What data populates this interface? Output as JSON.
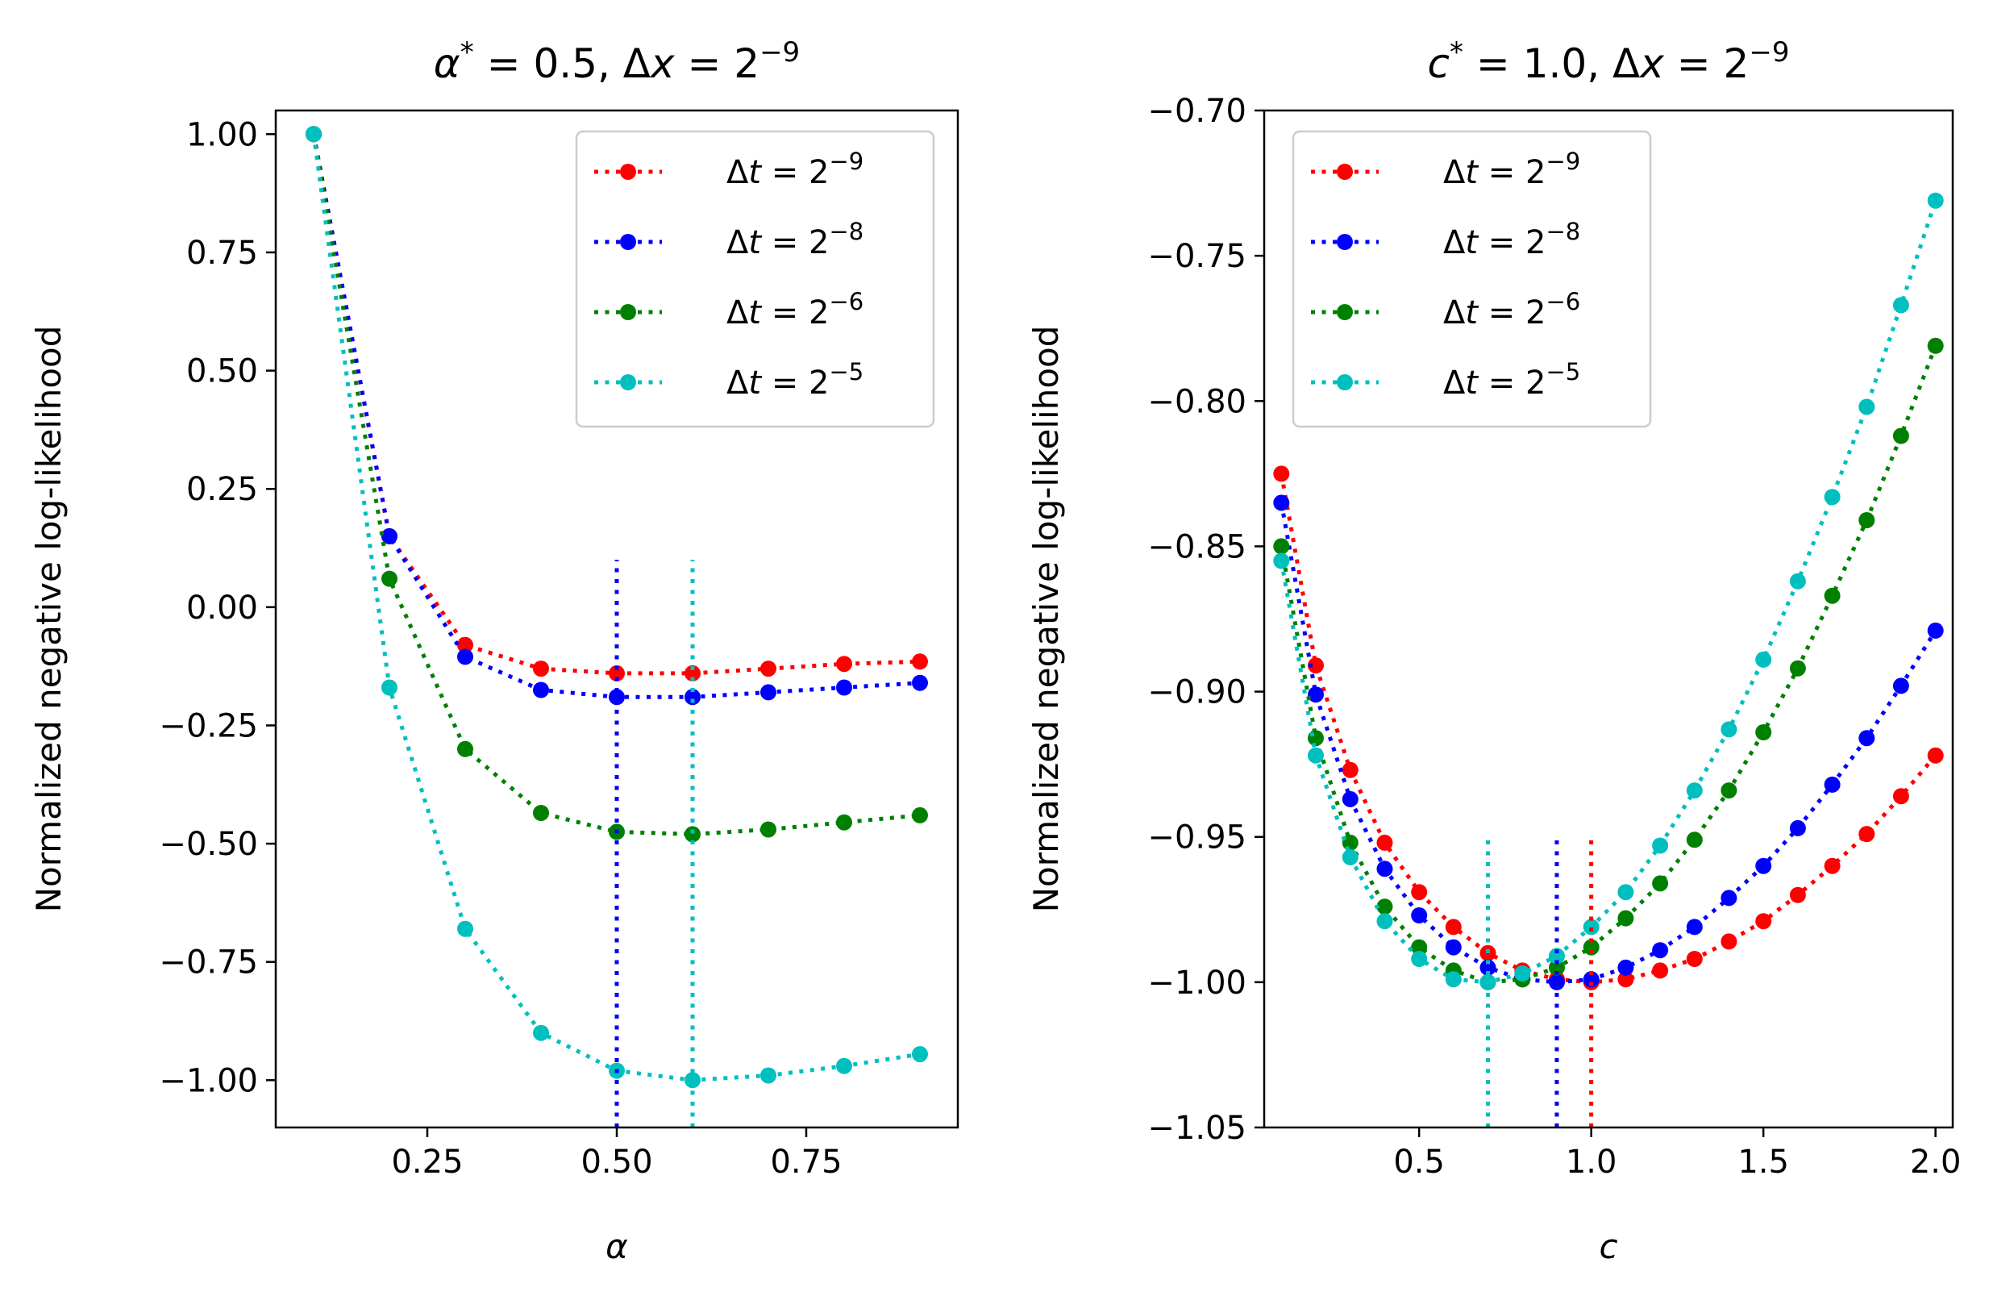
{
  "chart_data": [
    {
      "type": "line",
      "title_parts": [
        "α",
        "*",
        " = 0.5, Δ",
        "x",
        " = 2",
        "−9"
      ],
      "xlabel": "α",
      "ylabel": "Normalized negative log-likelihood",
      "xlim": [
        0.05,
        0.95
      ],
      "ylim": [
        -1.1,
        1.05
      ],
      "xticks": [
        0.25,
        0.5,
        0.75
      ],
      "xtick_labels": [
        "0.25",
        "0.50",
        "0.75"
      ],
      "yticks": [
        1.0,
        0.75,
        0.5,
        0.25,
        0.0,
        -0.25,
        -0.5,
        -0.75,
        -1.0
      ],
      "ytick_labels": [
        "1.00",
        "0.75",
        "0.50",
        "0.25",
        "0.00",
        "−0.25",
        "−0.50",
        "−0.75",
        "−1.00"
      ],
      "legend_position": "upper right",
      "grid": false,
      "x": [
        0.1,
        0.2,
        0.3,
        0.4,
        0.5,
        0.6,
        0.7,
        0.8,
        0.9
      ],
      "series": [
        {
          "name": "Δt = 2^−9",
          "legend_parts": [
            "Δ",
            "t",
            " = 2",
            "−9"
          ],
          "color": "#ff0000",
          "values": [
            1.0,
            0.15,
            -0.08,
            -0.13,
            -0.14,
            -0.14,
            -0.13,
            -0.12,
            -0.115
          ]
        },
        {
          "name": "Δt = 2^−8",
          "legend_parts": [
            "Δ",
            "t",
            " = 2",
            "−8"
          ],
          "color": "#0000ff",
          "values": [
            1.0,
            0.15,
            -0.105,
            -0.175,
            -0.19,
            -0.19,
            -0.18,
            -0.17,
            -0.16
          ]
        },
        {
          "name": "Δt = 2^−6",
          "legend_parts": [
            "Δ",
            "t",
            " = 2",
            "−6"
          ],
          "color": "#008000",
          "values": [
            1.0,
            0.06,
            -0.3,
            -0.435,
            -0.475,
            -0.48,
            -0.47,
            -0.455,
            -0.44
          ]
        },
        {
          "name": "Δt = 2^−5",
          "legend_parts": [
            "Δ",
            "t",
            " = 2",
            "−5"
          ],
          "color": "#00bfbf",
          "values": [
            1.0,
            -0.17,
            -0.68,
            -0.9,
            -0.98,
            -1.0,
            -0.99,
            -0.97,
            -0.945
          ]
        }
      ],
      "vlines": [
        {
          "x": 0.5,
          "y_range": [
            -1.1,
            0.1
          ],
          "color": "#0000ff"
        },
        {
          "x": 0.6,
          "y_range": [
            -1.1,
            0.1
          ],
          "color": "#00bfbf"
        }
      ]
    },
    {
      "type": "line",
      "title_parts": [
        "c",
        "*",
        " = 1.0, Δ",
        "x",
        " = 2",
        "−9"
      ],
      "xlabel": "c",
      "ylabel": "Normalized negative log-likelihood",
      "xlim": [
        0.05,
        2.05
      ],
      "ylim": [
        -1.05,
        -0.7
      ],
      "xticks": [
        0.5,
        1.0,
        1.5,
        2.0
      ],
      "xtick_labels": [
        "0.5",
        "1.0",
        "1.5",
        "2.0"
      ],
      "yticks": [
        -0.7,
        -0.75,
        -0.8,
        -0.85,
        -0.9,
        -0.95,
        -1.0,
        -1.05
      ],
      "ytick_labels": [
        "−0.70",
        "−0.75",
        "−0.80",
        "−0.85",
        "−0.90",
        "−0.95",
        "−1.00",
        "−1.05"
      ],
      "legend_position": "upper left",
      "grid": false,
      "x": [
        0.1,
        0.2,
        0.3,
        0.4,
        0.5,
        0.6,
        0.7,
        0.8,
        0.9,
        1.0,
        1.1,
        1.2,
        1.3,
        1.4,
        1.5,
        1.6,
        1.7,
        1.8,
        1.9,
        2.0
      ],
      "series": [
        {
          "name": "Δt = 2^−9",
          "legend_parts": [
            "Δ",
            "t",
            " = 2",
            "−9"
          ],
          "color": "#ff0000",
          "values": [
            -0.825,
            -0.891,
            -0.927,
            -0.952,
            -0.969,
            -0.981,
            -0.99,
            -0.996,
            -0.999,
            -1.0,
            -0.999,
            -0.996,
            -0.992,
            -0.986,
            -0.979,
            -0.97,
            -0.96,
            -0.949,
            -0.936,
            -0.922
          ]
        },
        {
          "name": "Δt = 2^−8",
          "legend_parts": [
            "Δ",
            "t",
            " = 2",
            "−8"
          ],
          "color": "#0000ff",
          "values": [
            -0.835,
            -0.901,
            -0.937,
            -0.961,
            -0.977,
            -0.988,
            -0.995,
            -0.999,
            -1.0,
            -0.999,
            -0.995,
            -0.989,
            -0.981,
            -0.971,
            -0.96,
            -0.947,
            -0.932,
            -0.916,
            -0.898,
            -0.879
          ]
        },
        {
          "name": "Δt = 2^−6",
          "legend_parts": [
            "Δ",
            "t",
            " = 2",
            "−6"
          ],
          "color": "#008000",
          "values": [
            -0.85,
            -0.916,
            -0.952,
            -0.974,
            -0.988,
            -0.996,
            -1.0,
            -0.999,
            -0.995,
            -0.988,
            -0.978,
            -0.966,
            -0.951,
            -0.934,
            -0.914,
            -0.892,
            -0.867,
            -0.841,
            -0.812,
            -0.781
          ]
        },
        {
          "name": "Δt = 2^−5",
          "legend_parts": [
            "Δ",
            "t",
            " = 2",
            "−5"
          ],
          "color": "#00bfbf",
          "values": [
            -0.855,
            -0.922,
            -0.957,
            -0.979,
            -0.992,
            -0.999,
            -1.0,
            -0.997,
            -0.991,
            -0.981,
            -0.969,
            -0.953,
            -0.934,
            -0.913,
            -0.889,
            -0.862,
            -0.833,
            -0.802,
            -0.767,
            -0.731
          ]
        }
      ],
      "vlines": [
        {
          "x": 1.0,
          "y_range": [
            -1.05,
            -0.95
          ],
          "color": "#ff0000"
        },
        {
          "x": 0.9,
          "y_range": [
            -1.05,
            -0.95
          ],
          "color": "#0000ff"
        },
        {
          "x": 0.7,
          "y_range": [
            -1.05,
            -0.95
          ],
          "color": "#00bfbf"
        }
      ]
    }
  ]
}
